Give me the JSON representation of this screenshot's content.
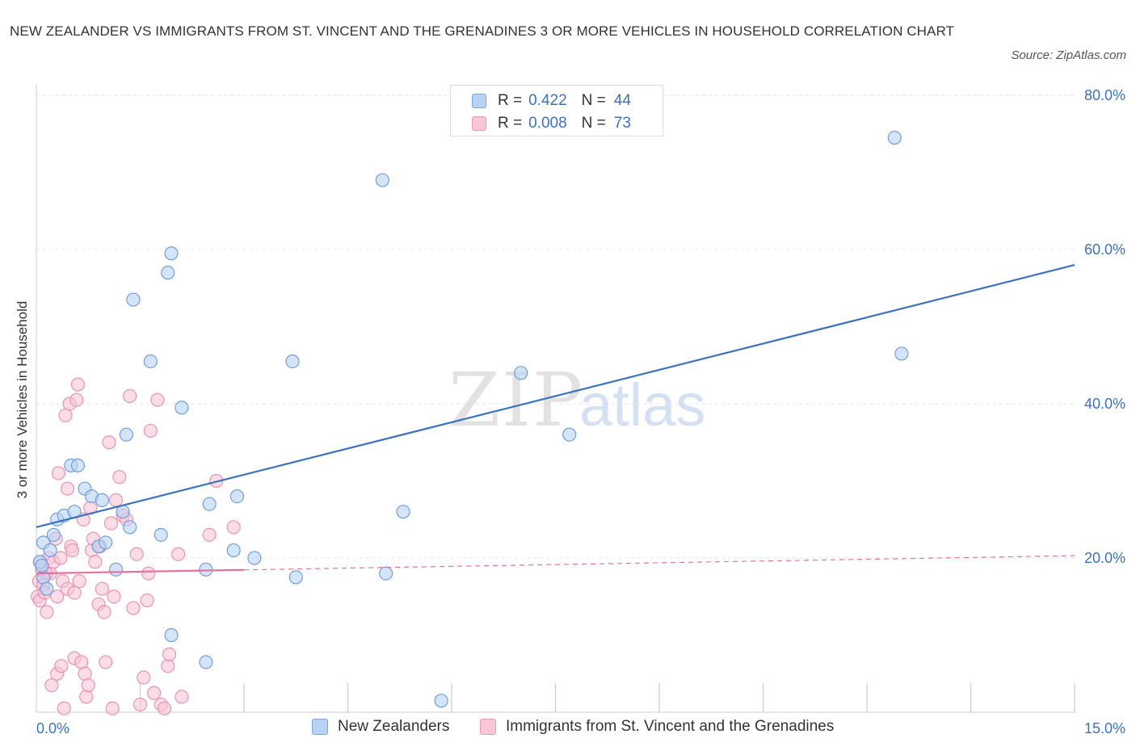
{
  "title": "NEW ZEALANDER VS IMMIGRANTS FROM ST. VINCENT AND THE GRENADINES 3 OR MORE VEHICLES IN HOUSEHOLD CORRELATION CHART",
  "source": "Source: ZipAtlas.com",
  "watermark": {
    "zip": "ZIP",
    "atlas": "atlas"
  },
  "colors": {
    "blue": "#3a72c4",
    "pink": "#e5719a",
    "blue_fill": "#b8d3f5",
    "pink_fill": "#f8c6d6"
  },
  "legend": {
    "rows": [
      {
        "r_label": "R =",
        "r_value": "0.422",
        "n_label": "N =",
        "n_value": "44"
      },
      {
        "r_label": "R =",
        "r_value": "0.008",
        "n_label": "N =",
        "n_value": "73"
      }
    ]
  },
  "bottom_legend": [
    "New Zealanders",
    "Immigrants from St. Vincent and the Grenadines"
  ],
  "chart_data": {
    "type": "scatter",
    "title": "NEW ZEALANDER VS IMMIGRANTS FROM ST. VINCENT AND THE GRENADINES 3 OR MORE VEHICLES IN HOUSEHOLD CORRELATION CHART",
    "xlabel": "",
    "ylabel": "3 or more Vehicles in Household",
    "xlim": [
      0,
      15
    ],
    "ylim": [
      0,
      80
    ],
    "x_tick_labels": [
      "0.0%",
      "15.0%"
    ],
    "y_ticks": [
      20,
      40,
      60,
      80
    ],
    "y_tick_labels": [
      "20.0%",
      "40.0%",
      "60.0%",
      "80.0%"
    ],
    "grid": true,
    "series": [
      {
        "name": "New Zealanders",
        "r": 0.422,
        "n": 44,
        "trend": {
          "x0": 0,
          "y0": 24.0,
          "x1": 15,
          "y1": 58.0,
          "dashed_from": null
        },
        "points": [
          [
            0.05,
            19.5
          ],
          [
            0.1,
            17.5
          ],
          [
            0.1,
            22.0
          ],
          [
            0.15,
            16.0
          ],
          [
            0.2,
            21.0
          ],
          [
            0.25,
            23.0
          ],
          [
            0.3,
            25.0
          ],
          [
            0.4,
            25.5
          ],
          [
            0.5,
            32.0
          ],
          [
            0.55,
            26.0
          ],
          [
            0.6,
            32.0
          ],
          [
            0.7,
            29.0
          ],
          [
            0.8,
            28.0
          ],
          [
            0.9,
            21.5
          ],
          [
            0.95,
            27.5
          ],
          [
            1.0,
            22.0
          ],
          [
            1.15,
            18.5
          ],
          [
            1.25,
            26.0
          ],
          [
            1.3,
            36.0
          ],
          [
            1.35,
            24.0
          ],
          [
            1.4,
            53.5
          ],
          [
            1.65,
            45.5
          ],
          [
            1.8,
            23.0
          ],
          [
            1.9,
            57.0
          ],
          [
            1.95,
            59.5
          ],
          [
            1.95,
            10.0
          ],
          [
            2.1,
            39.5
          ],
          [
            2.45,
            6.5
          ],
          [
            2.45,
            18.5
          ],
          [
            2.5,
            27.0
          ],
          [
            2.85,
            21.0
          ],
          [
            2.9,
            28.0
          ],
          [
            3.15,
            20.0
          ],
          [
            3.7,
            45.5
          ],
          [
            3.75,
            17.5
          ],
          [
            5.0,
            69.0
          ],
          [
            5.05,
            18.0
          ],
          [
            5.3,
            26.0
          ],
          [
            5.85,
            1.5
          ],
          [
            7.0,
            44.0
          ],
          [
            7.7,
            36.0
          ],
          [
            12.4,
            74.5
          ],
          [
            12.5,
            46.5
          ],
          [
            0.08,
            19.0
          ]
        ]
      },
      {
        "name": "Immigrants from St. Vincent and the Grenadines",
        "r": 0.008,
        "n": 73,
        "trend": {
          "x0": 0,
          "y0": 18.0,
          "x1": 15,
          "y1": 20.3,
          "dashed_from": 3.0
        },
        "points": [
          [
            0.02,
            15.0
          ],
          [
            0.04,
            17.0
          ],
          [
            0.05,
            14.5
          ],
          [
            0.06,
            19.5
          ],
          [
            0.08,
            18.5
          ],
          [
            0.1,
            16.5
          ],
          [
            0.12,
            15.5
          ],
          [
            0.15,
            13.0
          ],
          [
            0.18,
            20.0
          ],
          [
            0.2,
            18.0
          ],
          [
            0.22,
            3.5
          ],
          [
            0.25,
            19.5
          ],
          [
            0.28,
            22.5
          ],
          [
            0.3,
            15.0
          ],
          [
            0.3,
            5.0
          ],
          [
            0.32,
            31.0
          ],
          [
            0.35,
            20.0
          ],
          [
            0.38,
            17.0
          ],
          [
            0.4,
            0.5
          ],
          [
            0.42,
            38.5
          ],
          [
            0.45,
            29.0
          ],
          [
            0.45,
            16.0
          ],
          [
            0.48,
            40.0
          ],
          [
            0.5,
            21.5
          ],
          [
            0.52,
            21.0
          ],
          [
            0.55,
            7.0
          ],
          [
            0.55,
            15.5
          ],
          [
            0.58,
            40.5
          ],
          [
            0.6,
            42.5
          ],
          [
            0.62,
            17.0
          ],
          [
            0.65,
            6.5
          ],
          [
            0.68,
            25.0
          ],
          [
            0.7,
            5.0
          ],
          [
            0.72,
            2.0
          ],
          [
            0.75,
            3.5
          ],
          [
            0.78,
            26.5
          ],
          [
            0.8,
            21.0
          ],
          [
            0.82,
            22.5
          ],
          [
            0.85,
            19.5
          ],
          [
            0.9,
            14.0
          ],
          [
            0.92,
            21.5
          ],
          [
            0.95,
            16.0
          ],
          [
            0.98,
            13.0
          ],
          [
            1.0,
            6.5
          ],
          [
            1.05,
            35.0
          ],
          [
            1.08,
            24.5
          ],
          [
            1.1,
            0.5
          ],
          [
            1.12,
            15.0
          ],
          [
            1.15,
            27.5
          ],
          [
            1.2,
            30.5
          ],
          [
            1.25,
            25.5
          ],
          [
            1.3,
            25.0
          ],
          [
            1.35,
            41.0
          ],
          [
            1.4,
            13.5
          ],
          [
            1.45,
            20.5
          ],
          [
            1.5,
            1.0
          ],
          [
            1.55,
            4.5
          ],
          [
            1.6,
            14.5
          ],
          [
            1.62,
            18.0
          ],
          [
            1.65,
            36.5
          ],
          [
            1.7,
            2.5
          ],
          [
            1.75,
            40.5
          ],
          [
            1.8,
            1.0
          ],
          [
            1.85,
            0.5
          ],
          [
            1.9,
            6.0
          ],
          [
            1.92,
            7.5
          ],
          [
            2.05,
            20.5
          ],
          [
            2.1,
            2.0
          ],
          [
            2.5,
            23.0
          ],
          [
            2.6,
            30.0
          ],
          [
            2.85,
            24.0
          ],
          [
            0.14,
            18.0
          ],
          [
            0.36,
            6.0
          ]
        ]
      }
    ]
  }
}
